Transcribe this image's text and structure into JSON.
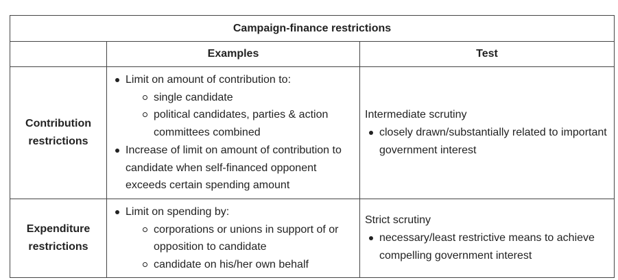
{
  "table": {
    "title": "Campaign-finance restrictions",
    "headers": {
      "blank": "",
      "examples": "Examples",
      "test": "Test"
    },
    "rows": [
      {
        "label_line1": "Contribution",
        "label_line2": "restrictions",
        "examples": {
          "item1": "Limit on amount of contribution to:",
          "item1_sub": [
            "single candidate",
            "political candidates, parties & action committees combined"
          ],
          "item2": "Increase of limit on amount of contribution to candidate when self-financed opponent exceeds certain spending amount"
        },
        "test": {
          "level": "Intermediate scrutiny",
          "bullet": "closely drawn/substantially related to important government interest"
        }
      },
      {
        "label_line1": "Expenditure",
        "label_line2": "restrictions",
        "examples": {
          "item1": "Limit on spending by:",
          "item1_sub": [
            "corporations or unions in support of or opposition to candidate",
            "candidate on his/her own behalf"
          ]
        },
        "test": {
          "level": "Strict scrutiny",
          "bullet": "necessary/least restrictive means to achieve compelling government interest"
        }
      }
    ]
  }
}
